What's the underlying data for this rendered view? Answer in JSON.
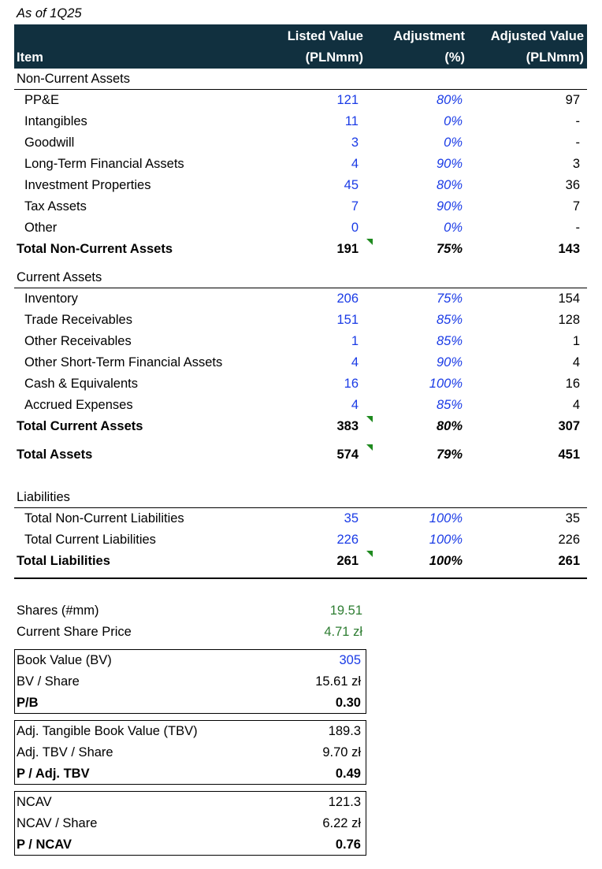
{
  "subtitle": "As of 1Q25",
  "table": {
    "columns": [
      [
        "Item"
      ],
      [
        "Listed Value",
        "(PLNmm)"
      ],
      [
        "Adjustment",
        "(%)"
      ],
      [
        "Adjusted Value",
        "(PLNmm)"
      ]
    ],
    "sections": [
      {
        "title": "Non-Current Assets",
        "rows": [
          [
            "PP&E",
            "121",
            "80%",
            "97"
          ],
          [
            "Intangibles",
            "11",
            "0%",
            "-"
          ],
          [
            "Goodwill",
            "3",
            "0%",
            "-"
          ],
          [
            "Long-Term Financial Assets",
            "4",
            "90%",
            "3"
          ],
          [
            "Investment Properties",
            "45",
            "80%",
            "36"
          ],
          [
            "Tax Assets",
            "7",
            "90%",
            "7"
          ],
          [
            "Other",
            "0",
            "0%",
            "-"
          ]
        ],
        "total": [
          "Total Non-Current Assets",
          "191",
          "75%",
          "143"
        ]
      },
      {
        "title": "Current Assets",
        "rows": [
          [
            "Inventory",
            "206",
            "75%",
            "154"
          ],
          [
            "Trade Receivables",
            "151",
            "85%",
            "128"
          ],
          [
            "Other Receivables",
            "1",
            "85%",
            "1"
          ],
          [
            "Other Short-Term Financial Assets",
            "4",
            "90%",
            "4"
          ],
          [
            "Cash & Equivalents",
            "16",
            "100%",
            "16"
          ],
          [
            "Accrued Expenses",
            "4",
            "85%",
            "4"
          ]
        ],
        "total": [
          "Total Current Assets",
          "383",
          "80%",
          "307"
        ]
      }
    ],
    "total_assets": [
      "Total Assets",
      "574",
      "79%",
      "451"
    ],
    "liabilities": {
      "title": "Liabilities",
      "rows": [
        [
          "Total Non-Current Liabilities",
          "35",
          "100%",
          "35"
        ],
        [
          "Total Current Liabilities",
          "226",
          "100%",
          "226"
        ]
      ],
      "total": [
        "Total Liabilities",
        "261",
        "100%",
        "261"
      ]
    }
  },
  "shares": [
    [
      "Shares (#mm)",
      "19.51"
    ],
    [
      "Current Share Price",
      "4.71 zł"
    ]
  ],
  "boxes": [
    [
      [
        "Book Value (BV)",
        "305"
      ],
      [
        "BV / Share",
        "15.61 zł"
      ],
      [
        "P/B",
        "0.30"
      ]
    ],
    [
      [
        "Adj. Tangible Book Value (TBV)",
        "189.3"
      ],
      [
        "Adj. TBV / Share",
        "9.70 zł"
      ],
      [
        "P / Adj. TBV",
        "0.49"
      ]
    ],
    [
      [
        "NCAV",
        "121.3"
      ],
      [
        "NCAV / Share",
        "6.22 zł"
      ],
      [
        "P / NCAV",
        "0.76"
      ]
    ]
  ]
}
